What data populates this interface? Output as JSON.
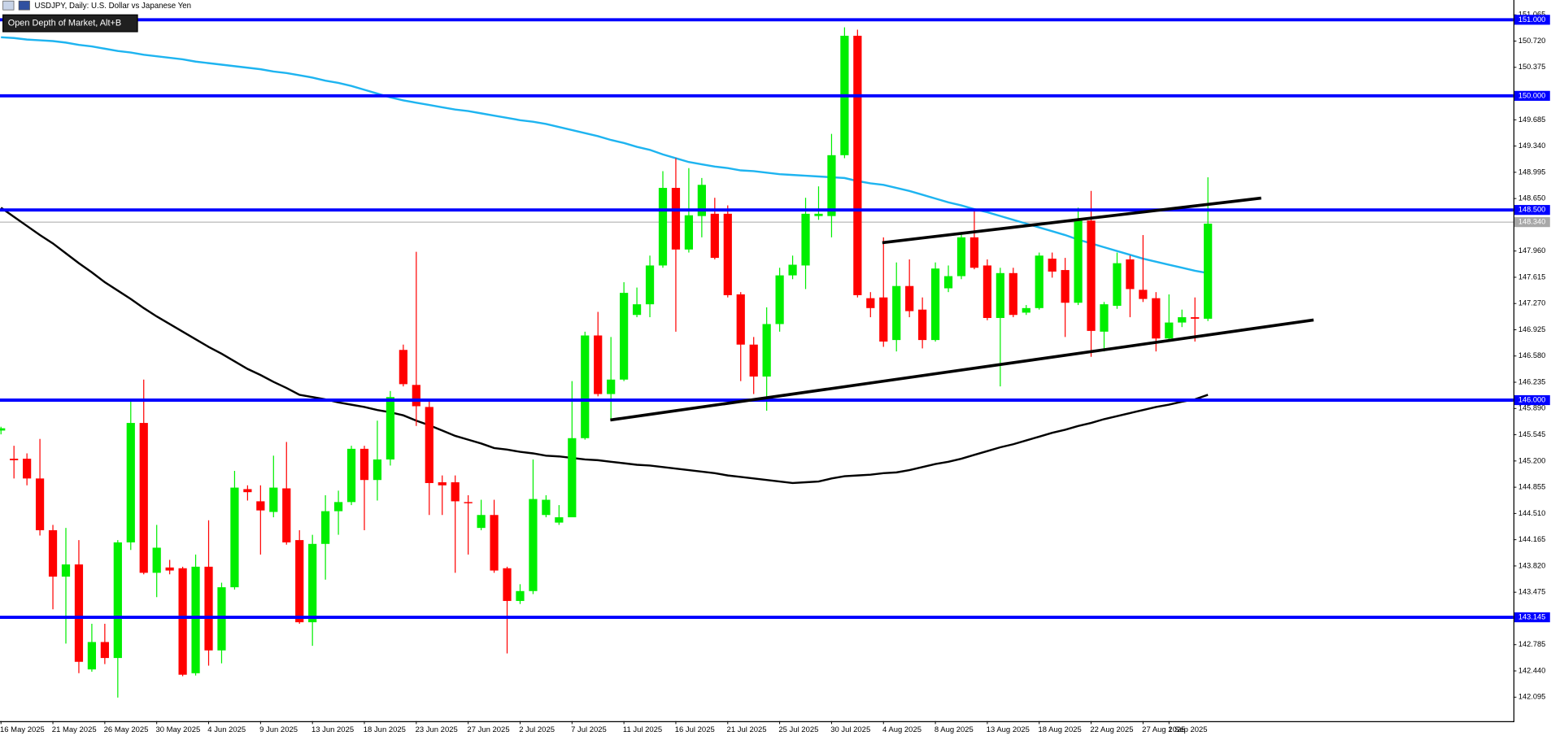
{
  "chart_data": {
    "type": "candlestick",
    "title": "USDJPY, Daily:  U.S. Dollar vs Japanese Yen",
    "tooltip": "Open Depth of Market, Alt+B",
    "up_color": "#00ee00",
    "down_color": "#ff0000",
    "ylim": [
      141.78,
      151.26
    ],
    "yticks": [
      {
        "value": 151.065,
        "label": "151.065"
      },
      {
        "value": 150.72,
        "label": "150.720"
      },
      {
        "value": 150.375,
        "label": "150.375"
      },
      {
        "value": 149.685,
        "label": "149.685"
      },
      {
        "value": 149.34,
        "label": "149.340"
      },
      {
        "value": 148.995,
        "label": "148.995"
      },
      {
        "value": 148.65,
        "label": "148.650"
      },
      {
        "value": 147.96,
        "label": "147.960"
      },
      {
        "value": 147.615,
        "label": "147.615"
      },
      {
        "value": 147.27,
        "label": "147.270"
      },
      {
        "value": 146.925,
        "label": "146.925"
      },
      {
        "value": 146.58,
        "label": "146.580"
      },
      {
        "value": 146.235,
        "label": "146.235"
      },
      {
        "value": 145.89,
        "label": "145.890"
      },
      {
        "value": 145.545,
        "label": "145.545"
      },
      {
        "value": 145.2,
        "label": "145.200"
      },
      {
        "value": 144.855,
        "label": "144.855"
      },
      {
        "value": 144.51,
        "label": "144.510"
      },
      {
        "value": 144.165,
        "label": "144.165"
      },
      {
        "value": 143.82,
        "label": "143.820"
      },
      {
        "value": 143.475,
        "label": "143.475"
      },
      {
        "value": 142.785,
        "label": "142.785"
      },
      {
        "value": 142.44,
        "label": "142.440"
      },
      {
        "value": 142.095,
        "label": "142.095"
      }
    ],
    "levels": {
      "color": "#0000ff",
      "items": [
        {
          "value": 151,
          "label": "151.000"
        },
        {
          "value": 150,
          "label": "150.000"
        },
        {
          "value": 148.5,
          "label": "148.500"
        },
        {
          "value": 146,
          "label": "146.000"
        },
        {
          "value": 143.145,
          "label": "143.145"
        }
      ]
    },
    "current_price": {
      "value": 148.34,
      "label": "148.340",
      "color": "#a8a8a8"
    },
    "categories": [
      "16 May 2025",
      null,
      null,
      null,
      "21 May 2025",
      null,
      null,
      null,
      "26 May 2025",
      null,
      null,
      null,
      "30 May 2025",
      null,
      null,
      null,
      "4 Jun 2025",
      null,
      null,
      null,
      "9 Jun 2025",
      null,
      null,
      null,
      "13 Jun 2025",
      null,
      null,
      null,
      "18 Jun 2025",
      null,
      null,
      null,
      "23 Jun 2025",
      null,
      null,
      null,
      "27 Jun 2025",
      null,
      null,
      null,
      "2 Jul 2025",
      null,
      null,
      null,
      "7 Jul 2025",
      null,
      null,
      null,
      "11 Jul 2025",
      null,
      null,
      null,
      "16 Jul 2025",
      null,
      null,
      null,
      "21 Jul 2025",
      null,
      null,
      null,
      "25 Jul 2025",
      null,
      null,
      null,
      "30 Jul 2025",
      null,
      null,
      null,
      "4 Aug 2025",
      null,
      null,
      null,
      "8 Aug 2025",
      null,
      null,
      null,
      "13 Aug 2025",
      null,
      null,
      null,
      "18 Aug 2025",
      null,
      null,
      null,
      "22 Aug 2025",
      null,
      null,
      null,
      "27 Aug 2025",
      null,
      "1 Sep 2025",
      null,
      null,
      null
    ],
    "ohlc": [
      [
        145.6,
        145.65,
        145.55,
        145.63
      ],
      [
        145.23,
        145.4,
        144.97,
        145.21
      ],
      [
        145.23,
        145.3,
        144.88,
        144.97
      ],
      [
        144.97,
        145.49,
        144.22,
        144.29
      ],
      [
        144.29,
        144.36,
        143.25,
        143.68
      ],
      [
        143.68,
        144.32,
        142.8,
        143.84
      ],
      [
        143.84,
        144.16,
        142.41,
        142.56
      ],
      [
        142.46,
        143.06,
        142.43,
        142.82
      ],
      [
        142.82,
        143.06,
        142.53,
        142.61
      ],
      [
        142.61,
        144.16,
        142.09,
        144.13
      ],
      [
        144.13,
        145.99,
        144.03,
        145.7
      ],
      [
        145.7,
        146.27,
        143.71,
        143.73
      ],
      [
        143.73,
        144.36,
        143.41,
        144.06
      ],
      [
        143.8,
        143.9,
        143.71,
        143.76
      ],
      [
        143.79,
        143.81,
        142.37,
        142.39
      ],
      [
        142.41,
        143.97,
        142.38,
        143.81
      ],
      [
        143.81,
        144.42,
        142.51,
        142.71
      ],
      [
        142.71,
        143.6,
        142.54,
        143.54
      ],
      [
        143.54,
        145.07,
        143.51,
        144.85
      ],
      [
        144.83,
        144.88,
        144.68,
        144.79
      ],
      [
        144.67,
        144.88,
        143.97,
        144.55
      ],
      [
        144.53,
        145.27,
        144.46,
        144.85
      ],
      [
        144.84,
        145.45,
        144.1,
        144.13
      ],
      [
        144.16,
        144.29,
        143.06,
        143.08
      ],
      [
        143.08,
        144.23,
        142.77,
        144.11
      ],
      [
        144.11,
        144.75,
        143.64,
        144.54
      ],
      [
        144.54,
        144.81,
        144.23,
        144.66
      ],
      [
        144.66,
        145.4,
        144.62,
        145.36
      ],
      [
        145.36,
        145.4,
        144.29,
        144.95
      ],
      [
        144.95,
        145.73,
        144.68,
        145.22
      ],
      [
        145.22,
        146.12,
        145.14,
        146.04
      ],
      [
        146.66,
        146.73,
        146.18,
        146.21
      ],
      [
        146.2,
        147.95,
        145.66,
        145.92
      ],
      [
        145.91,
        145.99,
        144.49,
        144.91
      ],
      [
        144.92,
        145.01,
        144.49,
        144.88
      ],
      [
        144.92,
        145.01,
        143.73,
        144.67
      ],
      [
        144.66,
        144.75,
        143.97,
        144.65
      ],
      [
        144.32,
        144.69,
        144.29,
        144.49
      ],
      [
        144.49,
        144.69,
        143.73,
        143.76
      ],
      [
        143.79,
        143.81,
        142.67,
        143.36
      ],
      [
        143.36,
        143.58,
        143.32,
        143.49
      ],
      [
        143.49,
        145.22,
        143.45,
        144.7
      ],
      [
        144.49,
        144.75,
        144.46,
        144.69
      ],
      [
        144.39,
        144.62,
        144.36,
        144.46
      ],
      [
        144.46,
        146.25,
        144.46,
        145.5
      ],
      [
        145.5,
        146.9,
        145.48,
        146.85
      ],
      [
        146.85,
        147.16,
        146.05,
        146.08
      ],
      [
        146.08,
        146.83,
        145.73,
        146.27
      ],
      [
        146.27,
        147.55,
        146.25,
        147.41
      ],
      [
        147.12,
        147.48,
        147.09,
        147.26
      ],
      [
        147.26,
        147.9,
        147.09,
        147.77
      ],
      [
        147.77,
        149.01,
        147.74,
        148.79
      ],
      [
        148.79,
        149.18,
        146.9,
        147.98
      ],
      [
        147.98,
        149.05,
        147.94,
        148.43
      ],
      [
        148.42,
        148.92,
        148.14,
        148.83
      ],
      [
        148.45,
        148.66,
        147.85,
        147.87
      ],
      [
        148.45,
        148.56,
        147.35,
        147.38
      ],
      [
        147.39,
        147.42,
        146.25,
        146.73
      ],
      [
        146.73,
        146.83,
        146.08,
        146.31
      ],
      [
        146.31,
        147.22,
        145.86,
        147.0
      ],
      [
        147.0,
        147.74,
        146.9,
        147.64
      ],
      [
        147.64,
        147.9,
        147.59,
        147.78
      ],
      [
        147.77,
        148.66,
        147.46,
        148.45
      ],
      [
        148.42,
        148.81,
        148.37,
        148.45
      ],
      [
        148.42,
        149.5,
        148.14,
        149.22
      ],
      [
        149.22,
        150.9,
        149.18,
        150.79
      ],
      [
        150.79,
        150.87,
        147.35,
        147.38
      ],
      [
        147.34,
        147.42,
        147.09,
        147.21
      ],
      [
        147.35,
        148.14,
        146.7,
        146.77
      ],
      [
        146.79,
        147.81,
        146.64,
        147.5
      ],
      [
        147.5,
        147.85,
        147.09,
        147.17
      ],
      [
        147.19,
        147.35,
        146.68,
        146.79
      ],
      [
        146.79,
        147.81,
        146.77,
        147.73
      ],
      [
        147.47,
        147.77,
        147.42,
        147.63
      ],
      [
        147.63,
        148.2,
        147.59,
        148.14
      ],
      [
        148.14,
        148.5,
        147.72,
        147.74
      ],
      [
        147.77,
        147.85,
        147.05,
        147.08
      ],
      [
        147.08,
        147.74,
        146.18,
        147.67
      ],
      [
        147.67,
        147.74,
        147.09,
        147.12
      ],
      [
        147.15,
        147.25,
        147.12,
        147.21
      ],
      [
        147.21,
        147.94,
        147.19,
        147.9
      ],
      [
        147.86,
        147.94,
        147.61,
        147.69
      ],
      [
        147.71,
        147.87,
        146.83,
        147.28
      ],
      [
        147.28,
        148.53,
        147.25,
        148.36
      ],
      [
        148.36,
        148.75,
        146.57,
        146.91
      ],
      [
        146.9,
        147.29,
        146.64,
        147.26
      ],
      [
        147.24,
        147.94,
        147.2,
        147.8
      ],
      [
        147.85,
        147.9,
        147.09,
        147.46
      ],
      [
        147.45,
        148.17,
        147.29,
        147.33
      ],
      [
        147.34,
        147.42,
        146.64,
        146.81
      ],
      [
        146.81,
        147.39,
        146.77,
        147.02
      ],
      [
        147.02,
        147.19,
        146.96,
        147.09
      ],
      [
        147.09,
        147.35,
        146.77,
        147.07
      ],
      [
        147.07,
        148.93,
        147.04,
        148.32
      ]
    ],
    "lines": [
      {
        "color": "#1eb4f0",
        "values": [
          150.77,
          150.76,
          150.74,
          150.73,
          150.72,
          150.7,
          150.67,
          150.65,
          150.62,
          150.59,
          150.57,
          150.54,
          150.52,
          150.5,
          150.48,
          150.45,
          150.43,
          150.41,
          150.39,
          150.37,
          150.35,
          150.32,
          150.3,
          150.27,
          150.24,
          150.2,
          150.17,
          150.13,
          150.08,
          150.03,
          149.98,
          149.94,
          149.91,
          149.88,
          149.85,
          149.82,
          149.8,
          149.77,
          149.74,
          149.71,
          149.68,
          149.66,
          149.63,
          149.59,
          149.55,
          149.51,
          149.47,
          149.42,
          149.38,
          149.33,
          149.29,
          149.23,
          149.18,
          149.13,
          149.1,
          149.07,
          149.05,
          149.02,
          149.01,
          148.99,
          148.97,
          148.96,
          148.95,
          148.94,
          148.93,
          148.92,
          148.88,
          148.85,
          148.83,
          148.79,
          148.75,
          148.7,
          148.65,
          148.6,
          148.56,
          148.51,
          148.47,
          148.42,
          148.37,
          148.32,
          148.27,
          148.22,
          148.17,
          148.11,
          148.06,
          148.01,
          147.96,
          147.91,
          147.86,
          147.82,
          147.78,
          147.74,
          147.7,
          147.67
        ]
      },
      {
        "color": "#000000",
        "values": [
          148.53,
          148.41,
          148.29,
          148.17,
          148.06,
          147.93,
          147.8,
          147.68,
          147.55,
          147.44,
          147.33,
          147.21,
          147.1,
          147.0,
          146.9,
          146.8,
          146.7,
          146.61,
          146.51,
          146.41,
          146.33,
          146.24,
          146.16,
          146.07,
          146.04,
          146.01,
          145.97,
          145.94,
          145.91,
          145.87,
          145.84,
          145.8,
          145.73,
          145.67,
          145.6,
          145.53,
          145.48,
          145.43,
          145.37,
          145.35,
          145.32,
          145.3,
          145.27,
          145.26,
          145.24,
          145.22,
          145.21,
          145.19,
          145.17,
          145.15,
          145.14,
          145.12,
          145.1,
          145.08,
          145.06,
          145.04,
          145.01,
          144.99,
          144.97,
          144.95,
          144.93,
          144.91,
          144.92,
          144.93,
          144.97,
          145.0,
          145.01,
          145.02,
          145.04,
          145.05,
          145.08,
          145.12,
          145.16,
          145.19,
          145.23,
          145.28,
          145.33,
          145.38,
          145.42,
          145.47,
          145.52,
          145.57,
          145.61,
          145.66,
          145.7,
          145.75,
          145.79,
          145.83,
          145.87,
          145.91,
          145.94,
          145.98,
          146.01,
          146.07
        ]
      }
    ]
  }
}
